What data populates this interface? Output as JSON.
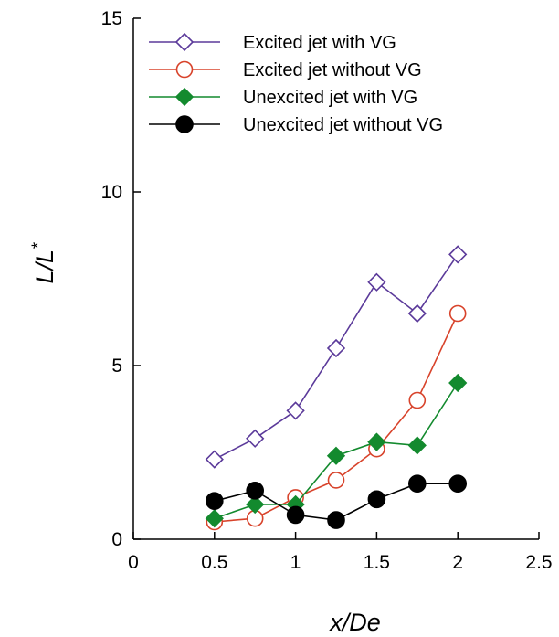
{
  "chart_data": {
    "type": "line",
    "xlabel": "x/De",
    "ylabel": {
      "main": "L/L",
      "superscript": "*"
    },
    "xlim": [
      0,
      2.5
    ],
    "ylim": [
      0,
      15
    ],
    "xticks": [
      0,
      0.5,
      1,
      1.5,
      2,
      2.5
    ],
    "yticks": [
      0,
      5,
      10,
      15
    ],
    "xtick_labels": [
      "0",
      "0.5",
      "1",
      "1.5",
      "2",
      "2.5"
    ],
    "ytick_labels": [
      "0",
      "5",
      "10",
      "15"
    ],
    "grid": false,
    "legend_position": "top-left",
    "series": [
      {
        "name": "Excited jet with VG",
        "color": "#5b3a9a",
        "marker": "diamond-open",
        "x": [
          0.5,
          0.75,
          1.0,
          1.25,
          1.5,
          1.75,
          2.0
        ],
        "y": [
          2.3,
          2.9,
          3.7,
          5.5,
          7.4,
          6.5,
          8.2
        ]
      },
      {
        "name": "Excited jet without VG",
        "color": "#d8432b",
        "marker": "circle-open",
        "x": [
          0.5,
          0.75,
          1.0,
          1.25,
          1.5,
          1.75,
          2.0
        ],
        "y": [
          0.5,
          0.6,
          1.2,
          1.7,
          2.6,
          4.0,
          6.5
        ]
      },
      {
        "name": "Unexcited jet with VG",
        "color": "#138a2e",
        "marker": "diamond-filled",
        "x": [
          0.5,
          0.75,
          1.0,
          1.25,
          1.5,
          1.75,
          2.0
        ],
        "y": [
          0.6,
          1.0,
          1.0,
          2.4,
          2.8,
          2.7,
          4.5
        ]
      },
      {
        "name": "Unexcited jet without VG",
        "color": "#000000",
        "marker": "circle-filled",
        "x": [
          0.5,
          0.75,
          1.0,
          1.25,
          1.5,
          1.75,
          2.0
        ],
        "y": [
          1.1,
          1.4,
          0.7,
          0.55,
          1.15,
          1.6,
          1.6
        ]
      }
    ]
  }
}
